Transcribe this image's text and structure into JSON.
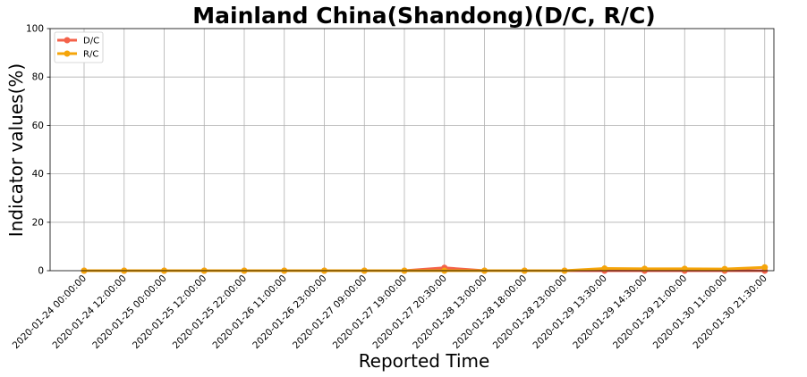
{
  "chart_data": {
    "type": "line",
    "title": "Mainland China(Shandong)(D/C, R/C)",
    "xlabel": "Reported Time",
    "ylabel": "Indicator values(%)",
    "ylim": [
      0,
      100
    ],
    "yticks": [
      0,
      20,
      40,
      60,
      80,
      100
    ],
    "grid": true,
    "legend_position": "top-left",
    "categories": [
      "2020-01-24 00:00:00",
      "2020-01-24 12:00:00",
      "2020-01-25 00:00:00",
      "2020-01-25 12:00:00",
      "2020-01-25 22:00:00",
      "2020-01-26 11:00:00",
      "2020-01-26 23:00:00",
      "2020-01-27 09:00:00",
      "2020-01-27 19:00:00",
      "2020-01-27 20:30:00",
      "2020-01-28 13:00:00",
      "2020-01-28 18:00:00",
      "2020-01-28 23:00:00",
      "2020-01-29 13:30:00",
      "2020-01-29 14:30:00",
      "2020-01-29 21:00:00",
      "2020-01-30 11:00:00",
      "2020-01-30 21:30:00"
    ],
    "series": [
      {
        "name": "D/C",
        "color": "#f4624a",
        "values": [
          0,
          0,
          0,
          0,
          0,
          0,
          0,
          0,
          0,
          1.2,
          0,
          0,
          0,
          0,
          0,
          0,
          0,
          0
        ]
      },
      {
        "name": "R/C",
        "color": "#f5a50a",
        "values": [
          0,
          0,
          0,
          0,
          0,
          0,
          0,
          0,
          0,
          0,
          0,
          0,
          0,
          0.9,
          0.8,
          0.8,
          0.7,
          1.4
        ]
      }
    ]
  }
}
